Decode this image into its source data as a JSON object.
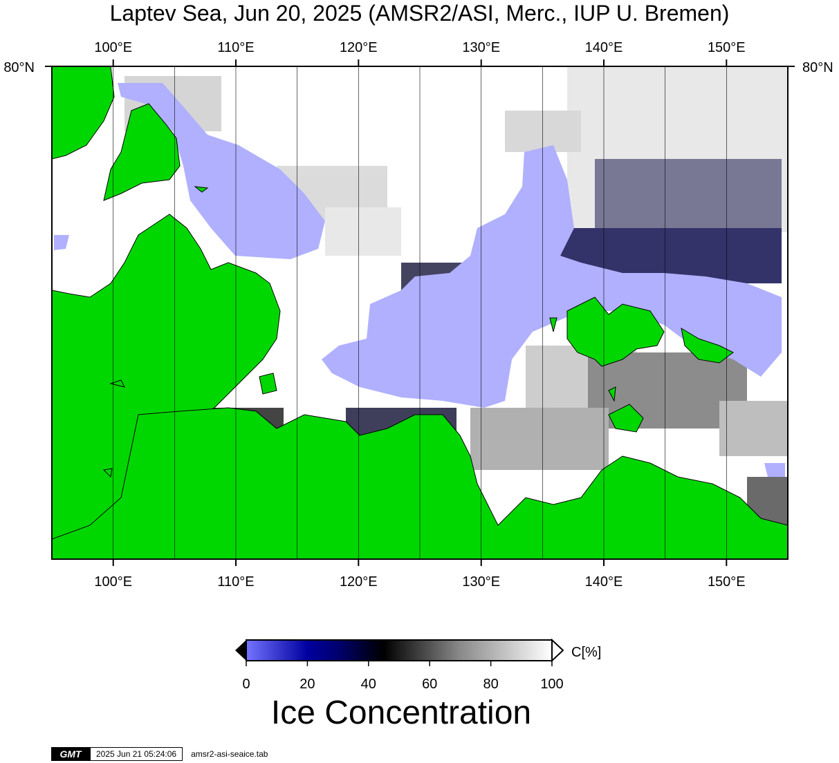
{
  "title": "Laptev Sea, Jun 20, 2025 (AMSR2/ASI, Merc., IUP U. Bremen)",
  "map": {
    "lon_range": [
      95,
      155
    ],
    "lat_top_label": "80°N",
    "lon_tick_labels": [
      "100°E",
      "110°E",
      "120°E",
      "130°E",
      "140°E",
      "150°E"
    ],
    "colors": {
      "land": "#00d700",
      "ice_free": "#b0b0ff",
      "background": "#ffffff"
    }
  },
  "colorbar": {
    "tick_labels": [
      "0",
      "20",
      "40",
      "60",
      "80",
      "100"
    ],
    "unit_label": "C[%]",
    "title": "Ice Concentration",
    "colors": [
      "#7474ff",
      "#00006e",
      "#000000",
      "#8a8a8a",
      "#ffffff"
    ]
  },
  "stamp": {
    "logo": "GMT",
    "datetime": "2025 Jun 21 05:24:06",
    "file": "amsr2-asi-seaice.tab"
  }
}
